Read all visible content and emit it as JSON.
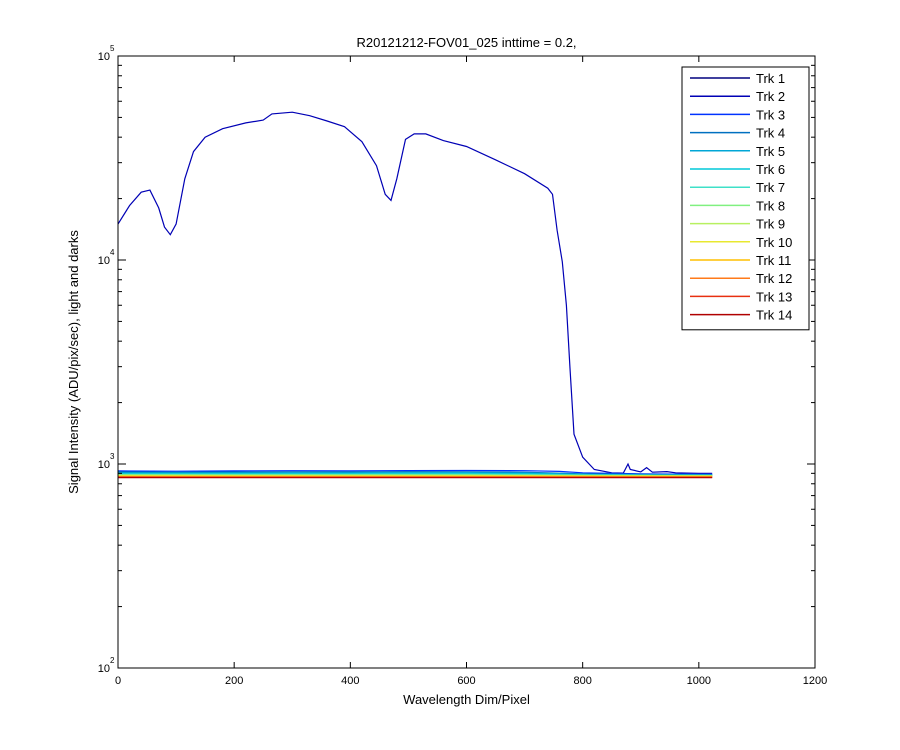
{
  "chart_data": {
    "type": "line",
    "title": "R20121212-FOV01_025 inttime = 0.2,",
    "xlabel": "Wavelength Dim/Pixel",
    "ylabel": "Signal Intensity (ADU/pix/sec), light and darks",
    "xlim": [
      0,
      1200
    ],
    "ylim": [
      100,
      100000
    ],
    "yscale": "log",
    "x_ticks": [
      0,
      200,
      400,
      600,
      800,
      1000,
      1200
    ],
    "y_ticks": [
      {
        "base": "10",
        "exp": "2",
        "value": 100
      },
      {
        "base": "10",
        "exp": "3",
        "value": 1000
      },
      {
        "base": "10",
        "exp": "4",
        "value": 10000
      },
      {
        "base": "10",
        "exp": "5",
        "value": 100000
      }
    ],
    "grid": false,
    "legend_position": "top-right",
    "series": [
      {
        "name": "Trk 1",
        "color": "#00007F",
        "points": [
          [
            0,
            893
          ],
          [
            100,
            886
          ],
          [
            200,
            884
          ],
          [
            300,
            882
          ],
          [
            400,
            881
          ],
          [
            500,
            881
          ],
          [
            600,
            880
          ],
          [
            700,
            879
          ],
          [
            800,
            878
          ],
          [
            900,
            877
          ],
          [
            1023,
            876
          ]
        ]
      },
      {
        "name": "Trk 2",
        "color": "#0000B5",
        "points": [
          [
            0,
            15000
          ],
          [
            20,
            18500
          ],
          [
            40,
            21500
          ],
          [
            55,
            22000
          ],
          [
            70,
            18000
          ],
          [
            80,
            14500
          ],
          [
            90,
            13300
          ],
          [
            100,
            15000
          ],
          [
            115,
            25000
          ],
          [
            130,
            34000
          ],
          [
            150,
            40000
          ],
          [
            180,
            44000
          ],
          [
            220,
            47000
          ],
          [
            250,
            48500
          ],
          [
            265,
            52000
          ],
          [
            300,
            53000
          ],
          [
            330,
            51000
          ],
          [
            360,
            48000
          ],
          [
            390,
            45000
          ],
          [
            420,
            38000
          ],
          [
            445,
            29000
          ],
          [
            460,
            21000
          ],
          [
            470,
            19600
          ],
          [
            480,
            25000
          ],
          [
            495,
            39000
          ],
          [
            510,
            41500
          ],
          [
            530,
            41500
          ],
          [
            560,
            38500
          ],
          [
            600,
            36000
          ],
          [
            650,
            31000
          ],
          [
            700,
            26500
          ],
          [
            740,
            22500
          ],
          [
            748,
            21000
          ],
          [
            756,
            14000
          ],
          [
            765,
            9800
          ],
          [
            772,
            6000
          ],
          [
            778,
            3000
          ],
          [
            785,
            1400
          ],
          [
            800,
            1080
          ],
          [
            820,
            940
          ],
          [
            850,
            905
          ],
          [
            870,
            902
          ],
          [
            878,
            1000
          ],
          [
            882,
            940
          ],
          [
            900,
            915
          ],
          [
            910,
            960
          ],
          [
            920,
            912
          ],
          [
            945,
            918
          ],
          [
            960,
            905
          ],
          [
            1000,
            900
          ],
          [
            1023,
            900
          ]
        ]
      },
      {
        "name": "Trk 3",
        "color": "#0033FF",
        "points": [
          [
            0,
            925
          ],
          [
            100,
            922
          ],
          [
            200,
            925
          ],
          [
            300,
            927
          ],
          [
            400,
            926
          ],
          [
            500,
            928
          ],
          [
            600,
            929
          ],
          [
            700,
            927
          ],
          [
            760,
            920
          ],
          [
            800,
            905
          ],
          [
            900,
            895
          ],
          [
            1023,
            890
          ]
        ]
      },
      {
        "name": "Trk 4",
        "color": "#0070C0",
        "points": [
          [
            0,
            915
          ],
          [
            100,
            912
          ],
          [
            200,
            914
          ],
          [
            300,
            916
          ],
          [
            400,
            915
          ],
          [
            500,
            917
          ],
          [
            600,
            916
          ],
          [
            700,
            912
          ],
          [
            800,
            895
          ],
          [
            900,
            889
          ],
          [
            1023,
            886
          ]
        ]
      },
      {
        "name": "Trk 5",
        "color": "#00A6D6",
        "points": [
          [
            0,
            905
          ],
          [
            100,
            903
          ],
          [
            200,
            904
          ],
          [
            300,
            905
          ],
          [
            400,
            905
          ],
          [
            500,
            906
          ],
          [
            600,
            906
          ],
          [
            700,
            903
          ],
          [
            800,
            890
          ],
          [
            900,
            885
          ],
          [
            1023,
            883
          ]
        ]
      },
      {
        "name": "Trk 6",
        "color": "#00C8D8",
        "points": [
          [
            0,
            898
          ],
          [
            200,
            897
          ],
          [
            400,
            898
          ],
          [
            600,
            899
          ],
          [
            700,
            897
          ],
          [
            800,
            886
          ],
          [
            900,
            882
          ],
          [
            1023,
            880
          ]
        ]
      },
      {
        "name": "Trk 7",
        "color": "#3FE0C8",
        "points": [
          [
            0,
            890
          ],
          [
            200,
            889
          ],
          [
            400,
            890
          ],
          [
            600,
            891
          ],
          [
            800,
            882
          ],
          [
            900,
            879
          ],
          [
            1023,
            878
          ]
        ]
      },
      {
        "name": "Trk 8",
        "color": "#80F080",
        "points": [
          [
            0,
            884
          ],
          [
            200,
            883
          ],
          [
            400,
            884
          ],
          [
            600,
            884
          ],
          [
            800,
            879
          ],
          [
            1023,
            876
          ]
        ]
      },
      {
        "name": "Trk 9",
        "color": "#B8F060",
        "points": [
          [
            0,
            879
          ],
          [
            200,
            878
          ],
          [
            400,
            878
          ],
          [
            600,
            878
          ],
          [
            800,
            876
          ],
          [
            1023,
            874
          ]
        ]
      },
      {
        "name": "Trk 10",
        "color": "#E8E830",
        "points": [
          [
            0,
            874
          ],
          [
            200,
            873
          ],
          [
            400,
            873
          ],
          [
            600,
            873
          ],
          [
            800,
            872
          ],
          [
            1023,
            871
          ]
        ]
      },
      {
        "name": "Trk 11",
        "color": "#FFBF00",
        "points": [
          [
            0,
            870
          ],
          [
            200,
            869
          ],
          [
            400,
            869
          ],
          [
            600,
            869
          ],
          [
            800,
            869
          ],
          [
            1023,
            868
          ]
        ]
      },
      {
        "name": "Trk 12",
        "color": "#FF7A1A",
        "points": [
          [
            0,
            866
          ],
          [
            200,
            865
          ],
          [
            400,
            865
          ],
          [
            600,
            865
          ],
          [
            800,
            865
          ],
          [
            1023,
            865
          ]
        ]
      },
      {
        "name": "Trk 13",
        "color": "#E83010",
        "points": [
          [
            0,
            862
          ],
          [
            200,
            861
          ],
          [
            400,
            861
          ],
          [
            600,
            861
          ],
          [
            800,
            861
          ],
          [
            1023,
            861
          ]
        ]
      },
      {
        "name": "Trk 14",
        "color": "#B00000",
        "points": [
          [
            0,
            858
          ],
          [
            200,
            857
          ],
          [
            400,
            857
          ],
          [
            600,
            857
          ],
          [
            800,
            857
          ],
          [
            1023,
            857
          ]
        ]
      }
    ]
  }
}
